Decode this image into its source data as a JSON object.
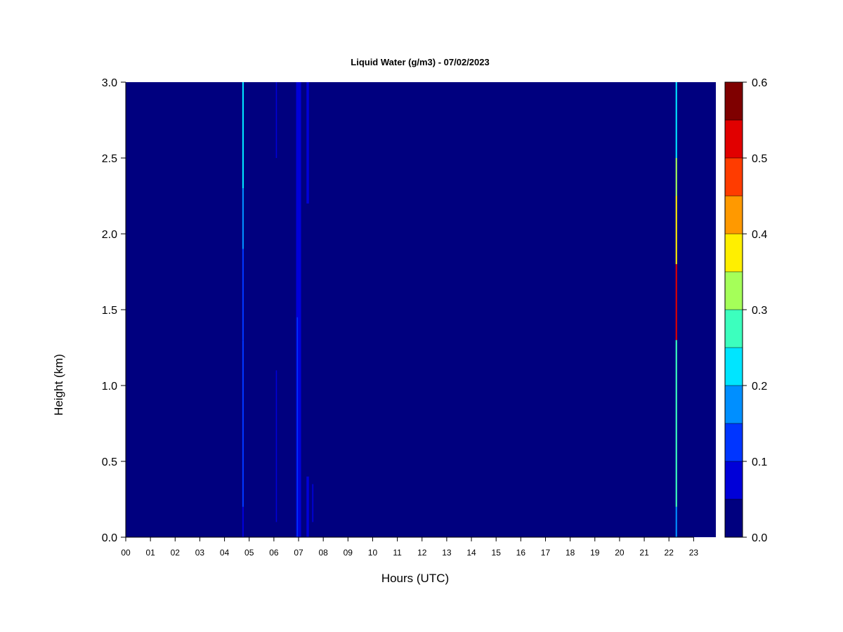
{
  "chart_data": {
    "type": "heatmap",
    "title": "Liquid Water (g/m3) - 07/02/2023",
    "xlabel": "Hours (UTC)",
    "ylabel": "Height (km)",
    "xlim": [
      0,
      23.9
    ],
    "ylim": [
      0,
      3.0
    ],
    "x_ticks": [
      "00",
      "01",
      "02",
      "03",
      "04",
      "05",
      "06",
      "07",
      "08",
      "09",
      "10",
      "11",
      "12",
      "13",
      "14",
      "15",
      "16",
      "17",
      "18",
      "19",
      "20",
      "21",
      "22",
      "23"
    ],
    "y_ticks": [
      "0.0",
      "0.5",
      "1.0",
      "1.5",
      "2.0",
      "2.5",
      "3.0"
    ],
    "background_value": 0.0,
    "colorbar": {
      "ticks": [
        "0.0",
        "0.1",
        "0.2",
        "0.3",
        "0.4",
        "0.5",
        "0.6"
      ],
      "levels": [
        0.0,
        0.05,
        0.1,
        0.15,
        0.2,
        0.25,
        0.3,
        0.35,
        0.4,
        0.45,
        0.5,
        0.55,
        0.6
      ],
      "colors": [
        "#00007f",
        "#0000d8",
        "#0035ff",
        "#008fff",
        "#00e5ff",
        "#3cffbe",
        "#a5ff59",
        "#ffef00",
        "#ff9900",
        "#ff3c00",
        "#e10000",
        "#7f0000"
      ]
    },
    "features": [
      {
        "x_start": 4.72,
        "x_end": 4.78,
        "segments": [
          {
            "y0": 0.0,
            "y1": 0.2,
            "value": 0.08
          },
          {
            "y0": 0.2,
            "y1": 1.3,
            "value": 0.11
          },
          {
            "y0": 1.3,
            "y1": 1.9,
            "value": 0.14
          },
          {
            "y0": 1.9,
            "y1": 2.3,
            "value": 0.17
          },
          {
            "y0": 2.3,
            "y1": 3.0,
            "value": 0.22
          }
        ]
      },
      {
        "x_start": 6.08,
        "x_end": 6.12,
        "segments": [
          {
            "y0": 0.1,
            "y1": 1.1,
            "value": 0.06
          },
          {
            "y0": 2.5,
            "y1": 3.0,
            "value": 0.06
          }
        ]
      },
      {
        "x_start": 6.9,
        "x_end": 7.1,
        "segments": [
          {
            "y0": 0.0,
            "y1": 3.0,
            "value": 0.07
          }
        ]
      },
      {
        "x_start": 6.93,
        "x_end": 6.97,
        "segments": [
          {
            "y0": 0.0,
            "y1": 1.45,
            "value": 0.11
          }
        ]
      },
      {
        "x_start": 7.32,
        "x_end": 7.42,
        "segments": [
          {
            "y0": 0.0,
            "y1": 0.4,
            "value": 0.08
          },
          {
            "y0": 2.2,
            "y1": 3.0,
            "value": 0.08
          }
        ]
      },
      {
        "x_start": 7.55,
        "x_end": 7.6,
        "segments": [
          {
            "y0": 0.1,
            "y1": 0.35,
            "value": 0.06
          }
        ]
      },
      {
        "x_start": 22.27,
        "x_end": 22.33,
        "segments": [
          {
            "y0": 0.0,
            "y1": 0.2,
            "value": 0.18
          },
          {
            "y0": 0.2,
            "y1": 1.3,
            "value": 0.26
          },
          {
            "y0": 1.3,
            "y1": 1.8,
            "value": 0.5
          },
          {
            "y0": 1.8,
            "y1": 2.25,
            "value": 0.38
          },
          {
            "y0": 2.25,
            "y1": 2.5,
            "value": 0.3
          },
          {
            "y0": 2.5,
            "y1": 3.0,
            "value": 0.22
          }
        ]
      }
    ]
  }
}
